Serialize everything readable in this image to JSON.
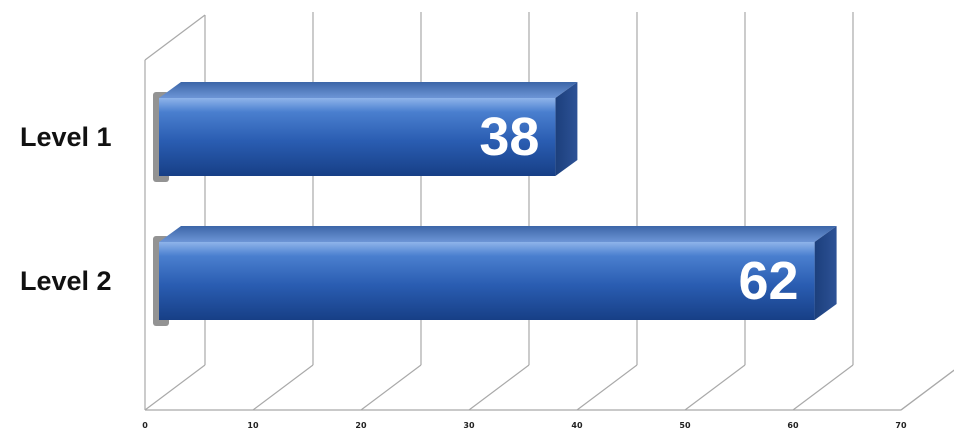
{
  "chart_data": {
    "type": "bar",
    "orientation": "horizontal",
    "style": "3d",
    "categories": [
      "Level 1",
      "Level 2"
    ],
    "values": [
      38,
      62
    ],
    "value_labels": [
      "38",
      "62"
    ],
    "xlim": [
      0,
      70
    ],
    "x_ticks": [
      "0",
      "10",
      "20",
      "30",
      "40",
      "50",
      "60",
      "70"
    ],
    "grid": true,
    "legend": "none",
    "bar_color": "#2f63b4",
    "title": "",
    "xlabel": "",
    "ylabel": ""
  }
}
